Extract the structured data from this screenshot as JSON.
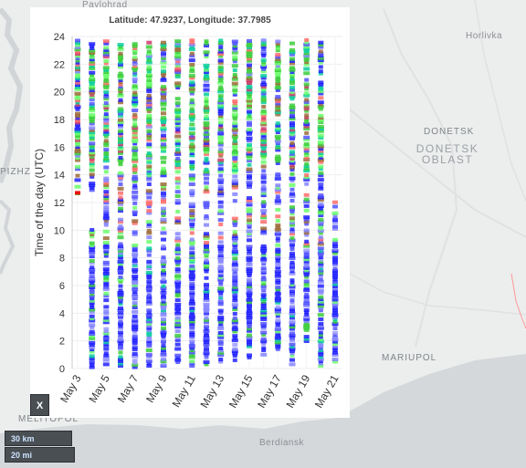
{
  "map": {
    "labels": {
      "pavlohrad": "Pavlohrad",
      "horlivka": "Horlivka",
      "donetsk": "DONETSK",
      "donetsk_oblast_1": "DONETSK",
      "donetsk_oblast_2": "OBLAST",
      "zaporizhzhia_fragment": "PIZHZH",
      "mariupol": "MARIUPOL",
      "melitopol": "MELITOPOL",
      "berdiansk": "Berdiansk"
    }
  },
  "popup": {
    "title": "Latitude: 47.9237, Longitude: 37.7985",
    "close_label": "X"
  },
  "scale": {
    "km": "30 km",
    "mi": "20 mi"
  },
  "chart_data": {
    "type": "scatter",
    "title": "Latitude: 47.9237, Longitude: 37.7985",
    "xlabel": "",
    "ylabel": "Time of the day (UTC)",
    "ylim": [
      0,
      24
    ],
    "yticks": [
      0,
      2,
      4,
      6,
      8,
      10,
      12,
      14,
      16,
      18,
      20,
      22,
      24
    ],
    "days": [
      "May 3",
      "May 4",
      "May 5",
      "May 6",
      "May 7",
      "May 8",
      "May 9",
      "May 10",
      "May 11",
      "May 12",
      "May 13",
      "May 14",
      "May 15",
      "May 16",
      "May 17",
      "May 18",
      "May 19",
      "May 20",
      "May 21"
    ],
    "xtick_labels": [
      "May 3",
      "May 5",
      "May 7",
      "May 9",
      "May 11",
      "May 13",
      "May 15",
      "May 17",
      "May 19",
      "May 21"
    ],
    "day_ranges": [
      {
        "day": "May 3",
        "y_min": 12.5,
        "y_max": 23.8
      },
      {
        "day": "May 4",
        "y_min": 0.1,
        "y_max": 23.6
      },
      {
        "day": "May 5",
        "y_min": 0.3,
        "y_max": 23.7
      },
      {
        "day": "May 6",
        "y_min": 0.2,
        "y_max": 23.6
      },
      {
        "day": "May 7",
        "y_min": 0.1,
        "y_max": 23.7
      },
      {
        "day": "May 8",
        "y_min": 0.2,
        "y_max": 23.7
      },
      {
        "day": "May 9",
        "y_min": 0.2,
        "y_max": 23.7
      },
      {
        "day": "May 10",
        "y_min": 0.3,
        "y_max": 23.8
      },
      {
        "day": "May 11",
        "y_min": 0.2,
        "y_max": 23.8
      },
      {
        "day": "May 12",
        "y_min": 0.3,
        "y_max": 23.8
      },
      {
        "day": "May 13",
        "y_min": 0.5,
        "y_max": 23.8
      },
      {
        "day": "May 14",
        "y_min": 0.6,
        "y_max": 23.8
      },
      {
        "day": "May 15",
        "y_min": 0.8,
        "y_max": 23.8
      },
      {
        "day": "May 16",
        "y_min": 1.0,
        "y_max": 23.8
      },
      {
        "day": "May 17",
        "y_min": 1.4,
        "y_max": 23.8
      },
      {
        "day": "May 18",
        "y_min": 0.3,
        "y_max": 23.8
      },
      {
        "day": "May 19",
        "y_min": 1.5,
        "y_max": 23.8
      },
      {
        "day": "May 20",
        "y_min": 0.2,
        "y_max": 23.6
      },
      {
        "day": "May 21",
        "y_min": 0.5,
        "y_max": 12.5
      }
    ],
    "gaps": [
      {
        "day": "May 3",
        "from": 0,
        "to": 12.5
      },
      {
        "day": "May 4",
        "from": 10.3,
        "to": 12.5
      }
    ],
    "series_colors": [
      "#1a1aff",
      "#4d4dff",
      "#8080ff",
      "#33cc33",
      "#66ff66",
      "#00cc99",
      "#996633",
      "#ff6666",
      "#cc3366",
      "#9999ff"
    ],
    "grid": true
  }
}
